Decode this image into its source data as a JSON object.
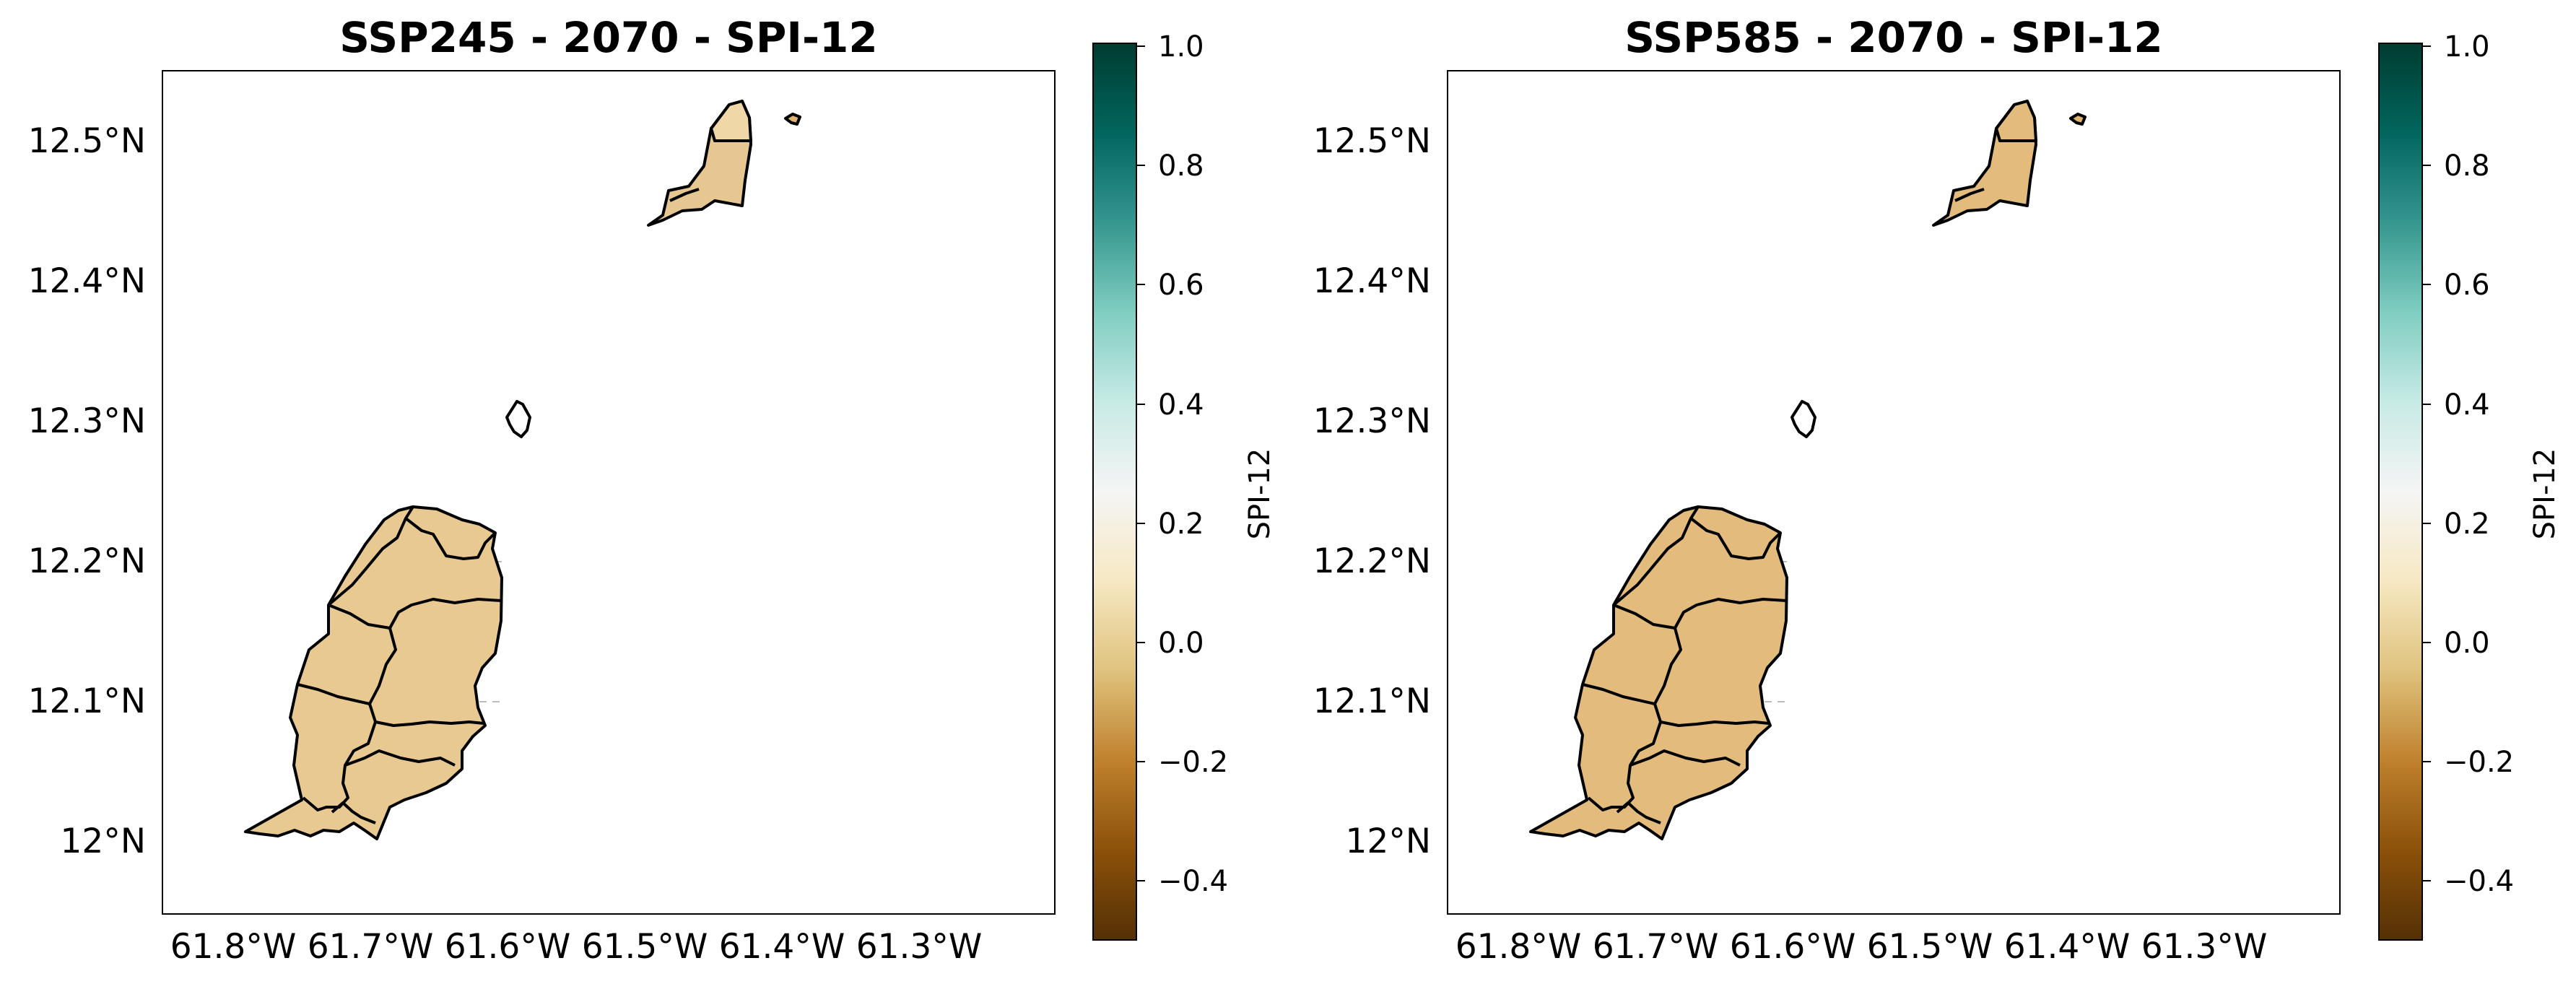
{
  "chart_data": [
    {
      "type": "heatmap",
      "title": "SSP245 - 2070 - SPI-12",
      "map_extent": {
        "lon": [
          -61.82,
          -61.19
        ],
        "lat": [
          11.95,
          12.55
        ]
      },
      "xticks": [
        {
          "value": -61.8,
          "label": "61.8°W"
        },
        {
          "value": -61.7,
          "label": "61.7°W"
        },
        {
          "value": -61.6,
          "label": "61.6°W"
        },
        {
          "value": -61.5,
          "label": "61.5°W"
        },
        {
          "value": -61.4,
          "label": "61.4°W"
        },
        {
          "value": -61.3,
          "label": "61.3°W"
        }
      ],
      "yticks": [
        {
          "value": 12.0,
          "label": "12°N"
        },
        {
          "value": 12.1,
          "label": "12.1°N"
        },
        {
          "value": 12.2,
          "label": "12.2°N"
        },
        {
          "value": 12.3,
          "label": "12.3°N"
        },
        {
          "value": 12.4,
          "label": "12.4°N"
        },
        {
          "value": 12.5,
          "label": "12.5°N"
        }
      ],
      "regions": [
        {
          "name": "Grenada main island",
          "value": 0.02,
          "color": "#e9c992"
        },
        {
          "name": "Carriacou",
          "value": 0.04,
          "color": "#e6c792"
        },
        {
          "name": "Carriacou north tip",
          "value": 0.1,
          "color": "#efd7a8"
        },
        {
          "name": "Petite Martinique",
          "value": -0.05,
          "color": "#e0b470"
        }
      ],
      "colorbar": {
        "label": "SPI-12",
        "range": [
          -0.5,
          1.0
        ],
        "ticks": [
          {
            "value": 1.0,
            "label": "1.0"
          },
          {
            "value": 0.8,
            "label": "0.8"
          },
          {
            "value": 0.6,
            "label": "0.6"
          },
          {
            "value": 0.4,
            "label": "0.4"
          },
          {
            "value": 0.2,
            "label": "0.2"
          },
          {
            "value": 0.0,
            "label": "0.0"
          },
          {
            "value": -0.2,
            "label": "−0.2"
          },
          {
            "value": -0.4,
            "label": "−0.4"
          }
        ]
      },
      "grid": true
    },
    {
      "type": "heatmap",
      "title": "SSP585 - 2070 - SPI-12",
      "map_extent": {
        "lon": [
          -61.82,
          -61.19
        ],
        "lat": [
          11.95,
          12.55
        ]
      },
      "xticks": [
        {
          "value": -61.8,
          "label": "61.8°W"
        },
        {
          "value": -61.7,
          "label": "61.7°W"
        },
        {
          "value": -61.6,
          "label": "61.6°W"
        },
        {
          "value": -61.5,
          "label": "61.5°W"
        },
        {
          "value": -61.4,
          "label": "61.4°W"
        },
        {
          "value": -61.3,
          "label": "61.3°W"
        }
      ],
      "yticks": [
        {
          "value": 12.0,
          "label": "12°N"
        },
        {
          "value": 12.1,
          "label": "12.1°N"
        },
        {
          "value": 12.2,
          "label": "12.2°N"
        },
        {
          "value": 12.3,
          "label": "12.3°N"
        },
        {
          "value": 12.4,
          "label": "12.4°N"
        },
        {
          "value": 12.5,
          "label": "12.5°N"
        }
      ],
      "regions": [
        {
          "name": "Grenada main island",
          "value": -0.02,
          "color": "#e2bb7d"
        },
        {
          "name": "Carriacou",
          "value": -0.02,
          "color": "#e2bb7d"
        },
        {
          "name": "Carriacou north tip",
          "value": -0.02,
          "color": "#e2bb7d"
        },
        {
          "name": "Petite Martinique",
          "value": -0.05,
          "color": "#e0b470"
        }
      ],
      "colorbar": {
        "label": "SPI-12",
        "range": [
          -0.5,
          1.0
        ],
        "ticks": [
          {
            "value": 1.0,
            "label": "1.0"
          },
          {
            "value": 0.8,
            "label": "0.8"
          },
          {
            "value": 0.6,
            "label": "0.6"
          },
          {
            "value": 0.4,
            "label": "0.4"
          },
          {
            "value": 0.2,
            "label": "0.2"
          },
          {
            "value": 0.0,
            "label": "0.0"
          },
          {
            "value": -0.2,
            "label": "−0.2"
          },
          {
            "value": -0.4,
            "label": "−0.4"
          }
        ]
      },
      "grid": true
    }
  ],
  "colormap": [
    "#543005",
    "#8c510a",
    "#bf812d",
    "#dfc27d",
    "#f6e8c3",
    "#f5f5f5",
    "#c7eae5",
    "#80cdc1",
    "#35978f",
    "#01665e",
    "#003c30"
  ]
}
